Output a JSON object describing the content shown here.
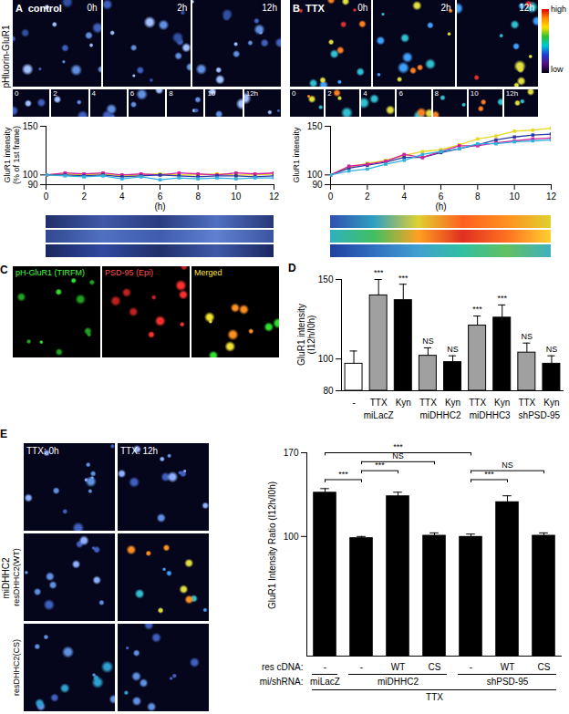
{
  "panels": {
    "A": {
      "letter": "A",
      "condition": "control",
      "times": [
        "0h",
        "2h",
        "12h"
      ],
      "channel": "pHluorin-GluR1",
      "insets": [
        "0",
        "2",
        "4",
        "6",
        "8",
        "10",
        "12h"
      ]
    },
    "B": {
      "letter": "B",
      "condition": "TTX",
      "times": [
        "0h",
        "2h",
        "12h"
      ],
      "insets": [
        "0",
        "2",
        "4",
        "6",
        "8",
        "10",
        "12h"
      ],
      "colorbar": [
        "high",
        "low"
      ]
    },
    "C": {
      "letter": "C",
      "images": [
        "pH-GluR1 (TIRFM)",
        "PSD-95 (Epi)",
        "Merged"
      ]
    },
    "D": {
      "letter": "D"
    },
    "E": {
      "letter": "E",
      "times": [
        "TTX: 0h",
        "TTX: 12h"
      ],
      "knockdown": "miDHHC2",
      "rescues": [
        "resDHHC2(WT)",
        "resDHHC2(CS)"
      ]
    }
  },
  "chart_data": [
    {
      "type": "line",
      "y_label": "GluR1 intensity\n(% of 1st frame)",
      "x_label": "(h)",
      "x": [
        0,
        1,
        2,
        3,
        4,
        5,
        6,
        7,
        8,
        9,
        10,
        11,
        12
      ],
      "xlim": [
        0,
        12
      ],
      "xticks": [
        0,
        2,
        4,
        6,
        8,
        10,
        12
      ],
      "ylim": [
        90,
        150
      ],
      "yticks": [
        90,
        100,
        150
      ],
      "marker": "square",
      "series": [
        {
          "color": "#e8d820",
          "values": [
            100,
            101,
            100,
            101,
            99,
            100,
            101,
            100,
            100,
            101,
            100,
            100,
            101
          ]
        },
        {
          "color": "#d0209a",
          "values": [
            100,
            102,
            101,
            102,
            100,
            101,
            100,
            102,
            101,
            100,
            102,
            101,
            102
          ]
        },
        {
          "color": "#2a3aa0",
          "values": [
            100,
            100,
            99,
            100,
            98,
            99,
            100,
            99,
            98,
            99,
            99,
            98,
            99
          ]
        },
        {
          "color": "#30b0e0",
          "values": [
            100,
            99,
            98,
            99,
            96,
            98,
            95,
            97,
            96,
            97,
            96,
            97,
            97
          ]
        }
      ]
    },
    {
      "type": "line",
      "y_label": "GluR1 intensity",
      "x_label": "(h)",
      "x": [
        0,
        1,
        2,
        3,
        4,
        5,
        6,
        7,
        8,
        9,
        10,
        11,
        12
      ],
      "xlim": [
        0,
        12
      ],
      "xticks": [
        0,
        2,
        4,
        6,
        8,
        10,
        12
      ],
      "ylim": [
        90,
        150
      ],
      "yticks": [
        90,
        100,
        150
      ],
      "marker": "square",
      "series": [
        {
          "color": "#e8d820",
          "values": [
            100,
            108,
            112,
            115,
            120,
            124,
            126,
            131,
            137,
            140,
            145,
            146,
            148
          ]
        },
        {
          "color": "#2a3aa0",
          "values": [
            100,
            107,
            110,
            113,
            118,
            118,
            123,
            127,
            131,
            136,
            139,
            141,
            142
          ]
        },
        {
          "color": "#d0209a",
          "values": [
            100,
            109,
            111,
            114,
            121,
            118,
            124,
            130,
            130,
            133,
            135,
            137,
            138
          ]
        },
        {
          "color": "#30b0e0",
          "values": [
            100,
            104,
            106,
            111,
            115,
            121,
            124,
            127,
            132,
            132,
            134,
            135,
            136
          ]
        }
      ]
    },
    {
      "type": "bar",
      "y_label": "GluR1 intensity\n(I12h/I0h)",
      "categories": [
        "-",
        "TTX",
        "Kyn",
        "TTX",
        "Kyn",
        "TTX",
        "Kyn",
        "TTX",
        "Kyn"
      ],
      "values": [
        97,
        140,
        137,
        102,
        98,
        121,
        126,
        104,
        97
      ],
      "errors": [
        8,
        10,
        10,
        5,
        4,
        6,
        8,
        6,
        5
      ],
      "colors": [
        "#ffffff",
        "#a0a0a0",
        "#000000",
        "#a0a0a0",
        "#000000",
        "#a0a0a0",
        "#000000",
        "#a0a0a0",
        "#000000"
      ],
      "annotations": [
        null,
        "***",
        "***",
        "NS",
        "NS",
        "***",
        "***",
        "NS",
        "NS"
      ],
      "groups": [
        {
          "label": "miLacZ",
          "from": 0,
          "to": 2
        },
        {
          "label": "miDHHC2",
          "from": 3,
          "to": 4
        },
        {
          "label": "miDHHC3",
          "from": 5,
          "to": 6
        },
        {
          "label": "shPSD-95",
          "from": 7,
          "to": 8
        }
      ],
      "ylim": [
        80,
        150
      ],
      "yticks": [
        80,
        100,
        150
      ]
    },
    {
      "type": "bar",
      "y_label": "GluR1 Intensity Ratio (I12h/I0h)",
      "values": [
        137,
        99,
        134,
        101,
        100,
        129,
        101
      ],
      "errors": [
        3,
        1,
        3,
        2,
        2,
        5,
        2
      ],
      "color": "#000000",
      "rows": [
        {
          "label": "res cDNA:",
          "values": [
            "-",
            "-",
            "WT",
            "CS",
            "-",
            "WT",
            "CS"
          ]
        }
      ],
      "groups_label": "mi/shRNA:",
      "groups": [
        {
          "label": "miLacZ",
          "from": 0,
          "to": 0
        },
        {
          "label": "miDHHC2",
          "from": 1,
          "to": 3
        },
        {
          "label": "shPSD-95",
          "from": 4,
          "to": 6
        }
      ],
      "treatment": "TTX",
      "comparisons": [
        {
          "from": 0,
          "to": 1,
          "label": "***"
        },
        {
          "from": 1,
          "to": 2,
          "label": "***"
        },
        {
          "from": 1,
          "to": 3,
          "label": "NS"
        },
        {
          "from": 4,
          "to": 5,
          "label": "***"
        },
        {
          "from": 4,
          "to": 6,
          "label": "NS"
        },
        {
          "from": 0,
          "to": 4,
          "label": "***"
        }
      ],
      "ylim": [
        0,
        170
      ],
      "yticks": [
        100,
        170
      ],
      "tick_labels": "y"
    }
  ]
}
